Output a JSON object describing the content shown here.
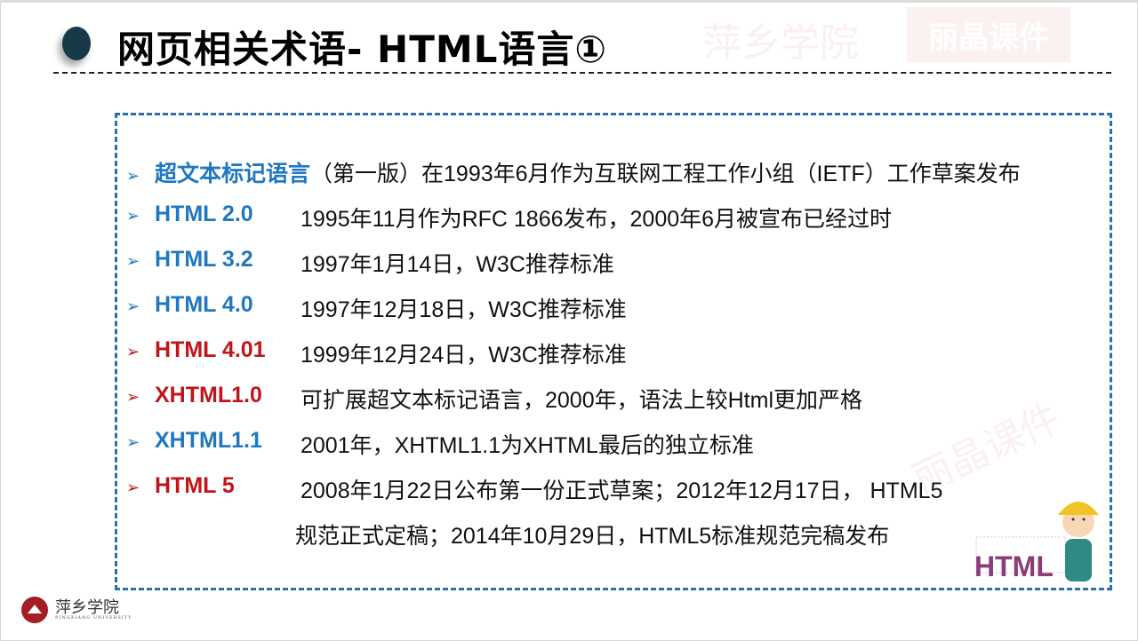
{
  "title": "网页相关术语- HTML语言①",
  "watermark": {
    "school": "萍乡学院",
    "brand": "丽晶课件"
  },
  "colors": {
    "blue": "#1f78c1",
    "red": "#c0151b",
    "frame": "#2a6fae",
    "title_dot": "#173a4a"
  },
  "items": [
    {
      "label": "超文本标记语言",
      "color": "blue",
      "desc": "（第一版）在1993年6月作为互联网工程工作小组（IETF）工作草案发布"
    },
    {
      "label": "HTML 2.0",
      "color": "blue",
      "desc": "1995年11月作为RFC 1866发布，2000年6月被宣布已经过时"
    },
    {
      "label": "HTML 3.2",
      "color": "blue",
      "desc": "1997年1月14日，W3C推荐标准"
    },
    {
      "label": "HTML 4.0",
      "color": "blue",
      "desc": "1997年12月18日，W3C推荐标准"
    },
    {
      "label": "HTML 4.01",
      "color": "red",
      "desc": "1999年12月24日，W3C推荐标准"
    },
    {
      "label": "XHTML1.0",
      "color": "red",
      "desc": "可扩展超文本标记语言，2000年，语法上较Html更加严格"
    },
    {
      "label": "XHTML1.1",
      "color": "blue",
      "desc": "2001年，XHTML1.1为XHTML最后的独立标准"
    },
    {
      "label": "HTML 5",
      "color": "red",
      "desc": "2008年1月22日公布第一份正式草案；2012年12月17日， HTML5",
      "desc2": "规范正式定稿；2014年10月29日，HTML5标准规范完稿发布"
    }
  ],
  "bullet_icon": "arrow-right-icon",
  "mascot": {
    "label": "HTML"
  },
  "logo": {
    "name": "萍乡学院",
    "sub": "PINGXIANG UNIVERSITY"
  }
}
